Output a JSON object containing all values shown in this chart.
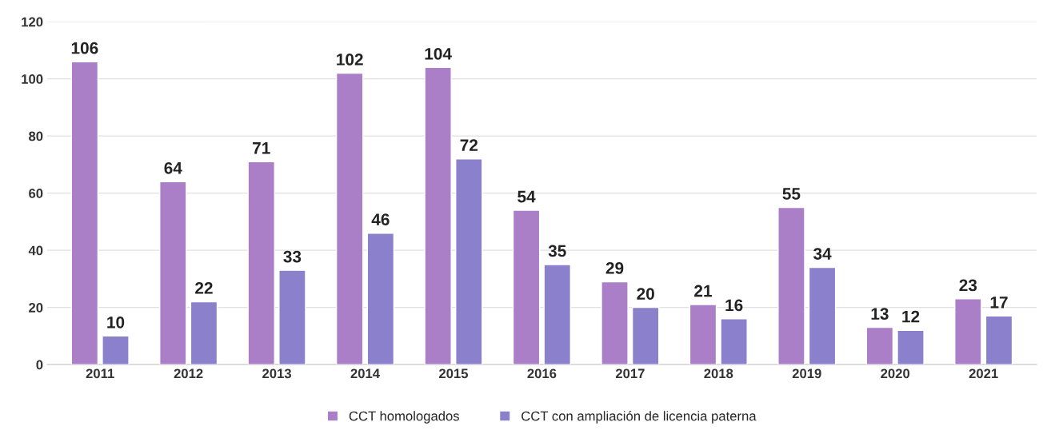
{
  "chart_data": {
    "type": "bar",
    "categories": [
      "2011",
      "2012",
      "2013",
      "2014",
      "2015",
      "2016",
      "2017",
      "2018",
      "2019",
      "2020",
      "2021"
    ],
    "series": [
      {
        "name": "CCT homologados",
        "color": "#ab7fc7",
        "values": [
          106,
          64,
          71,
          102,
          104,
          54,
          29,
          21,
          55,
          13,
          23
        ]
      },
      {
        "name": "CCT con ampliación de licencia paterna",
        "color": "#8a80cc",
        "values": [
          10,
          22,
          33,
          46,
          72,
          35,
          20,
          16,
          34,
          12,
          17
        ]
      }
    ],
    "ylim": [
      0,
      120
    ],
    "yticks": [
      0,
      20,
      40,
      60,
      80,
      100,
      120
    ],
    "grid": "y",
    "legend": "bottom",
    "data_labels": true
  }
}
